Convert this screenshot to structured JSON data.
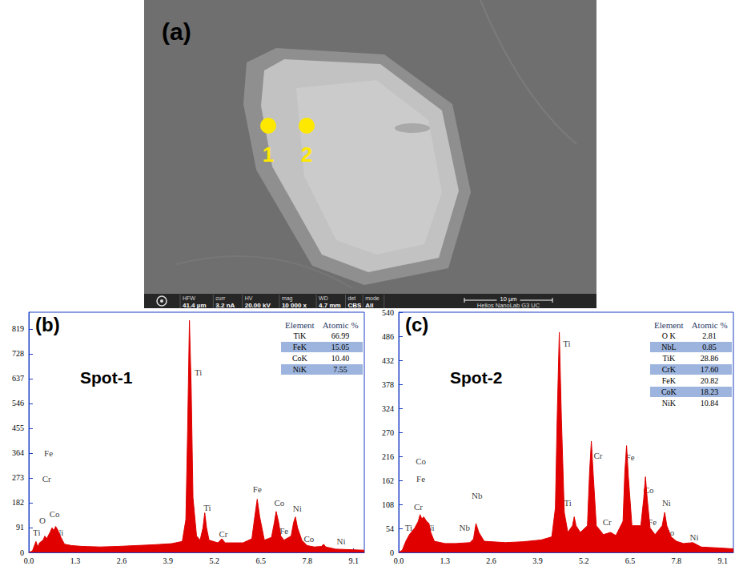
{
  "figure_a": {
    "label": "(a)",
    "spots": [
      "1",
      "2"
    ],
    "info_bar": {
      "fields": [
        [
          "HFW",
          "41.4 µm"
        ],
        [
          "curr",
          "3.2 nA"
        ],
        [
          "HV",
          "20.00 kV"
        ],
        [
          "mag",
          "10 000 x"
        ],
        [
          "WD",
          "4.7 mm"
        ],
        [
          "det",
          "CBS"
        ],
        [
          "mode",
          "All"
        ]
      ],
      "scale_bar": "10 µm",
      "instrument": "Helios NanoLab G3 UC"
    }
  },
  "chart_data": [
    {
      "type": "area",
      "panel": "(b)",
      "title": "Spot-1",
      "color": "#e00000",
      "x": [
        0.0,
        0.1,
        0.2,
        0.25,
        0.3,
        0.4,
        0.45,
        0.5,
        0.52,
        0.6,
        0.65,
        0.7,
        0.75,
        0.8,
        0.85,
        0.9,
        1.0,
        1.2,
        1.5,
        2.0,
        2.5,
        3.0,
        3.5,
        4.0,
        4.3,
        4.4,
        4.45,
        4.5,
        4.55,
        4.6,
        4.7,
        4.8,
        4.88,
        4.93,
        4.98,
        5.05,
        5.3,
        5.41,
        5.5,
        6.0,
        6.25,
        6.33,
        6.4,
        6.47,
        6.6,
        6.8,
        6.88,
        6.93,
        7.0,
        7.06,
        7.15,
        7.35,
        7.42,
        7.47,
        7.53,
        7.65,
        7.8,
        8.0,
        8.2,
        8.26,
        8.32,
        8.6,
        9.0,
        9.4
      ],
      "values": [
        0,
        5,
        40,
        20,
        35,
        45,
        60,
        50,
        55,
        75,
        90,
        80,
        95,
        85,
        70,
        55,
        30,
        25,
        22,
        20,
        22,
        25,
        28,
        32,
        40,
        120,
        450,
        850,
        600,
        200,
        60,
        45,
        90,
        145,
        90,
        45,
        35,
        50,
        35,
        35,
        50,
        130,
        195,
        130,
        45,
        55,
        110,
        150,
        110,
        60,
        45,
        60,
        110,
        130,
        90,
        45,
        25,
        20,
        22,
        30,
        20,
        12,
        10,
        8
      ],
      "xlim": [
        0,
        9.4
      ],
      "xticks": [
        {
          "value": 0,
          "label": "0.0"
        },
        1.3,
        2.6,
        3.9,
        5.2,
        6.5,
        7.8,
        9.1
      ],
      "ylim": [
        0,
        880
      ],
      "yticks": [
        0,
        91,
        182,
        273,
        364,
        455,
        546,
        637,
        728,
        819
      ],
      "annotations": [
        {
          "text": "Fe",
          "x": 0.55,
          "y": 365
        },
        {
          "text": "Cr",
          "x": 0.5,
          "y": 270
        },
        {
          "text": "Co",
          "x": 0.72,
          "y": 140
        },
        {
          "text": "O",
          "x": 0.38,
          "y": 118
        },
        {
          "text": "Ti",
          "x": 0.22,
          "y": 72
        },
        {
          "text": "Ni",
          "x": 0.85,
          "y": 72
        },
        {
          "text": "Ti",
          "x": 4.75,
          "y": 660
        },
        {
          "text": "Ti",
          "x": 5.0,
          "y": 165
        },
        {
          "text": "Cr",
          "x": 5.45,
          "y": 68
        },
        {
          "text": "Fe",
          "x": 6.4,
          "y": 232
        },
        {
          "text": "Co",
          "x": 7.02,
          "y": 182
        },
        {
          "text": "Fe",
          "x": 7.15,
          "y": 78
        },
        {
          "text": "Ni",
          "x": 7.52,
          "y": 160
        },
        {
          "text": "Co",
          "x": 7.85,
          "y": 50
        },
        {
          "text": "Ni",
          "x": 8.75,
          "y": 40
        }
      ],
      "table": {
        "columns": [
          "Element",
          "Atomic %"
        ],
        "rows": [
          [
            "TiK",
            "66.99"
          ],
          [
            "FeK",
            "15.05"
          ],
          [
            "CoK",
            "10.40"
          ],
          [
            "NiK",
            "7.55"
          ]
        ]
      }
    },
    {
      "type": "area",
      "panel": "(c)",
      "title": "Spot-2",
      "color": "#e00000",
      "x": [
        0.0,
        0.1,
        0.2,
        0.3,
        0.45,
        0.55,
        0.6,
        0.65,
        0.7,
        0.78,
        0.85,
        0.9,
        1.0,
        1.3,
        1.6,
        2.0,
        2.1,
        2.17,
        2.25,
        2.4,
        3.0,
        3.5,
        4.0,
        4.3,
        4.4,
        4.45,
        4.51,
        4.57,
        4.65,
        4.75,
        4.88,
        4.93,
        4.98,
        5.1,
        5.3,
        5.36,
        5.41,
        5.46,
        5.55,
        5.75,
        5.95,
        6.1,
        6.3,
        6.35,
        6.4,
        6.45,
        6.55,
        6.8,
        6.88,
        6.93,
        6.98,
        7.06,
        7.2,
        7.4,
        7.47,
        7.53,
        7.65,
        7.8,
        8.0,
        8.26,
        8.5,
        9.0,
        9.4
      ],
      "values": [
        0,
        5,
        25,
        40,
        55,
        70,
        85,
        75,
        80,
        70,
        65,
        45,
        25,
        20,
        20,
        22,
        30,
        65,
        45,
        25,
        22,
        24,
        28,
        35,
        100,
        300,
        495,
        300,
        90,
        45,
        60,
        80,
        60,
        45,
        60,
        180,
        250,
        180,
        60,
        40,
        45,
        38,
        70,
        180,
        240,
        170,
        60,
        60,
        120,
        170,
        120,
        55,
        40,
        60,
        90,
        60,
        35,
        25,
        20,
        22,
        12,
        10,
        8
      ],
      "xlim": [
        0,
        9.4
      ],
      "xticks": [
        {
          "value": 0,
          "label": "0.0"
        },
        1.3,
        2.6,
        3.9,
        5.2,
        6.5,
        7.8,
        9.1
      ],
      "ylim": [
        0,
        540
      ],
      "yticks": [
        0,
        54,
        108,
        162,
        216,
        270,
        324,
        378,
        432,
        486,
        540
      ],
      "annotations": [
        {
          "text": "Co",
          "x": 0.62,
          "y": 205
        },
        {
          "text": "Fe",
          "x": 0.62,
          "y": 165
        },
        {
          "text": "Cr",
          "x": 0.55,
          "y": 102
        },
        {
          "text": "Ti",
          "x": 0.28,
          "y": 55
        },
        {
          "text": "Ni",
          "x": 0.88,
          "y": 55
        },
        {
          "text": "Nb",
          "x": 2.2,
          "y": 128
        },
        {
          "text": "Nb",
          "x": 1.85,
          "y": 55
        },
        {
          "text": "Ti",
          "x": 4.72,
          "y": 470
        },
        {
          "text": "Ti",
          "x": 4.75,
          "y": 112
        },
        {
          "text": "Cr",
          "x": 5.6,
          "y": 218
        },
        {
          "text": "Cr",
          "x": 5.85,
          "y": 68
        },
        {
          "text": "Fe",
          "x": 6.5,
          "y": 215
        },
        {
          "text": "Co",
          "x": 7.02,
          "y": 140
        },
        {
          "text": "Fe",
          "x": 7.12,
          "y": 68
        },
        {
          "text": "Ni",
          "x": 7.52,
          "y": 112
        },
        {
          "text": "Co",
          "x": 7.6,
          "y": 45
        },
        {
          "text": "Ni",
          "x": 8.3,
          "y": 35
        }
      ],
      "table": {
        "columns": [
          "Element",
          "Atomic %"
        ],
        "rows": [
          [
            "O K",
            "2.81"
          ],
          [
            "NbL",
            "0.85"
          ],
          [
            "TiK",
            "28.86"
          ],
          [
            "CrK",
            "17.60"
          ],
          [
            "FeK",
            "20.82"
          ],
          [
            "CoK",
            "18.23"
          ],
          [
            "NiK",
            "10.84"
          ]
        ]
      }
    }
  ]
}
